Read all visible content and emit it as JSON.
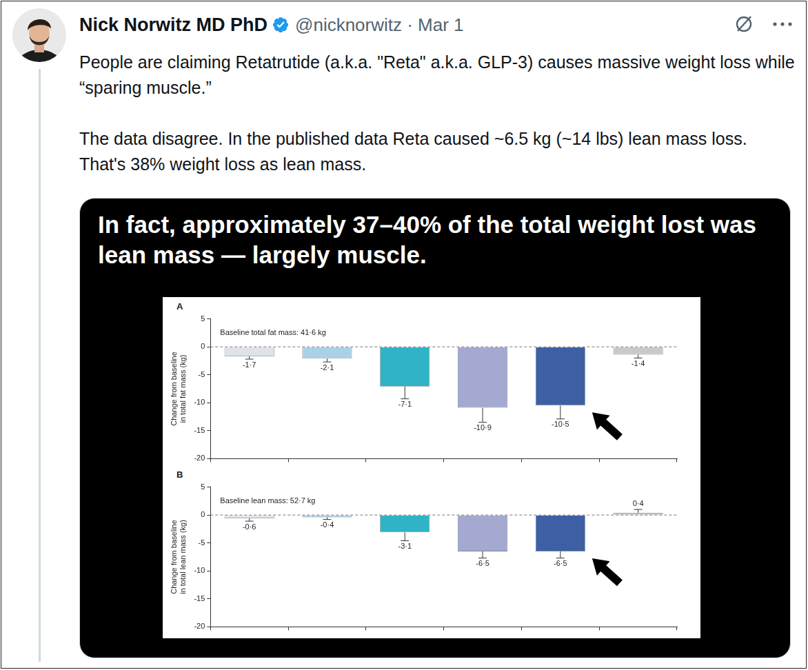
{
  "post": {
    "author": "Nick Norwitz MD PhD",
    "byline": "@nicknorwitz · Mar 1",
    "text": [
      "People are claiming Retatrutide (a.k.a. \"Reta\" a.k.a. GLP-3) causes massive weight loss while “sparing muscle.”",
      "The data disagree. In the published data Reta caused ~6.5 kg (~14 lbs) lean mass loss. That's 38% weight loss as lean mass."
    ],
    "image_heading": "In fact, approximately 37–40% of the total weight lost was lean mass — largely muscle."
  },
  "chart_data": [
    {
      "type": "bar",
      "panel": "A",
      "y_label": [
        "Change from baseline",
        "in total fat mass (kg)"
      ],
      "annotation": "Baseline total fat mass: 41·6 kg",
      "categories": [
        null,
        null,
        null,
        null,
        null,
        null
      ],
      "values": [
        -1.7,
        -2.1,
        -7.1,
        -10.9,
        -10.5,
        -1.4
      ],
      "value_labels": [
        "-1·7",
        "-2·1",
        "-7·1",
        "-10·9",
        "-10·5",
        "-1·4"
      ],
      "errors": [
        0.5,
        0.6,
        2.2,
        2.6,
        2.4,
        0.6
      ],
      "colors": [
        "#dfe3e8",
        "#a9d2e6",
        "#31b3c6",
        "#a3a9d1",
        "#3e5fa3",
        "#c9c9c9"
      ],
      "ylim": [
        -20,
        5
      ],
      "yticks": [
        -20,
        -15,
        -10,
        -5,
        0,
        5
      ],
      "grid": false,
      "data_labels": true,
      "tick_labels": "y"
    },
    {
      "type": "bar",
      "panel": "B",
      "y_label": [
        "Change from baseline",
        "in total lean mass (kg)"
      ],
      "annotation": "Baseline lean mass: 52·7 kg",
      "categories": [
        null,
        null,
        null,
        null,
        null,
        null
      ],
      "values": [
        -0.6,
        -0.4,
        -3.1,
        -6.5,
        -6.5,
        0.4
      ],
      "value_labels": [
        "-0·6",
        "-0·4",
        "-3·1",
        "-6·5",
        "-6·5",
        "0·4"
      ],
      "errors": [
        0.5,
        0.4,
        1.5,
        1.2,
        1.2,
        0.6
      ],
      "colors": [
        "#dfe3e8",
        "#a9d2e6",
        "#31b3c6",
        "#a3a9d1",
        "#3e5fa3",
        "#c9c9c9"
      ],
      "ylim": [
        -20,
        5
      ],
      "yticks": [
        -20,
        -15,
        -10,
        -5,
        0,
        5
      ],
      "grid": false,
      "data_labels": true,
      "tick_labels": "y"
    }
  ]
}
